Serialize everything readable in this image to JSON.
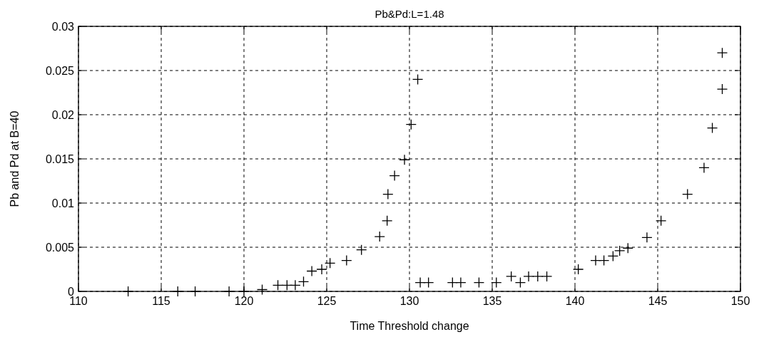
{
  "chart_data": {
    "type": "scatter",
    "title": "Pb&Pd:L=1.48",
    "xlabel": "Time Threshold change",
    "ylabel": "Pb and Pd at B=40",
    "x": [
      113,
      116,
      117.05,
      119.1,
      120,
      121.1,
      122.05,
      122.6,
      123.1,
      123.6,
      124.1,
      124.7,
      125.2,
      126.2,
      127.1,
      128.2,
      128.65,
      128.7,
      129.1,
      129.7,
      130.1,
      130.5,
      130.65,
      131.15,
      132.6,
      133.1,
      134.2,
      135.25,
      136.15,
      136.7,
      137.2,
      137.75,
      138.3,
      140.2,
      141.25,
      141.75,
      142.3,
      142.7,
      143.2,
      144.35,
      145.2,
      146.8,
      147.8,
      148.3,
      148.9,
      148.9
    ],
    "series": [
      {
        "color": "#000000",
        "values": [
          0,
          0,
          0,
          0,
          0,
          0.0002,
          0.0007,
          0.0007,
          0.0007,
          0.0011,
          0.0023,
          0.0025,
          0.0032,
          0.0035,
          0.0047,
          0.0062,
          0.008,
          0.011,
          0.0131,
          0.0149,
          0.0189,
          0.024,
          0.001,
          0.001,
          0.001,
          0.001,
          0.001,
          0.001,
          0.0017,
          0.001,
          0.0017,
          0.0017,
          0.0017,
          0.0025,
          0.0035,
          0.0035,
          0.004,
          0.0046,
          0.0049,
          0.0061,
          0.008,
          0.011,
          0.014,
          0.0185,
          0.0229,
          0.027
        ]
      }
    ],
    "xlim": [
      110,
      150
    ],
    "xticks": [
      110,
      115,
      120,
      125,
      130,
      135,
      140,
      145,
      150
    ],
    "ylim": [
      0,
      0.03
    ],
    "yticks": [
      0,
      0.005,
      0.01,
      0.015,
      0.02,
      0.025,
      0.03
    ],
    "grid": true,
    "marker": "cross"
  }
}
